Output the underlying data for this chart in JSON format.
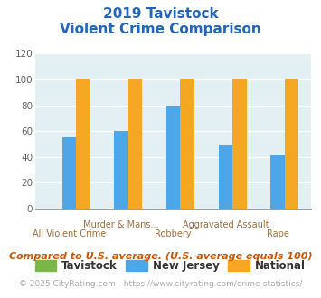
{
  "title_line1": "2019 Tavistock",
  "title_line2": "Violent Crime Comparison",
  "categories": [
    "All Violent Crime",
    "Murder & Mans...",
    "Robbery",
    "Aggravated Assault",
    "Rape"
  ],
  "cat_labels_row1": [
    "",
    "Murder & Mans...",
    "",
    "Aggravated Assault",
    ""
  ],
  "cat_labels_row2": [
    "All Violent Crime",
    "",
    "Robbery",
    "",
    "Rape"
  ],
  "tavistock_values": [
    0,
    0,
    0,
    0,
    0
  ],
  "nj_values": [
    55,
    60,
    80,
    49,
    41
  ],
  "national_values": [
    100,
    100,
    100,
    100,
    100
  ],
  "tavistock_color": "#7ab648",
  "nj_color": "#4da6e8",
  "national_color": "#f5a623",
  "ylim": [
    0,
    120
  ],
  "yticks": [
    0,
    20,
    40,
    60,
    80,
    100,
    120
  ],
  "plot_bg_color": "#e2eff3",
  "title_color": "#2266bb",
  "xlabel_color": "#a07040",
  "legend_text_color": "#333333",
  "footer_color": "#cc5500",
  "copyright_color": "#aaaaaa",
  "footer_text": "Compared to U.S. average. (U.S. average equals 100)",
  "copyright_text": "© 2025 CityRating.com - https://www.cityrating.com/crime-statistics/",
  "legend_labels": [
    "Tavistock",
    "New Jersey",
    "National"
  ],
  "title_fontsize": 11,
  "axis_label_fontsize": 7,
  "footer_fontsize": 8,
  "copyright_fontsize": 6.5,
  "legend_fontsize": 8.5,
  "ytick_fontsize": 7.5,
  "bar_width": 0.27
}
